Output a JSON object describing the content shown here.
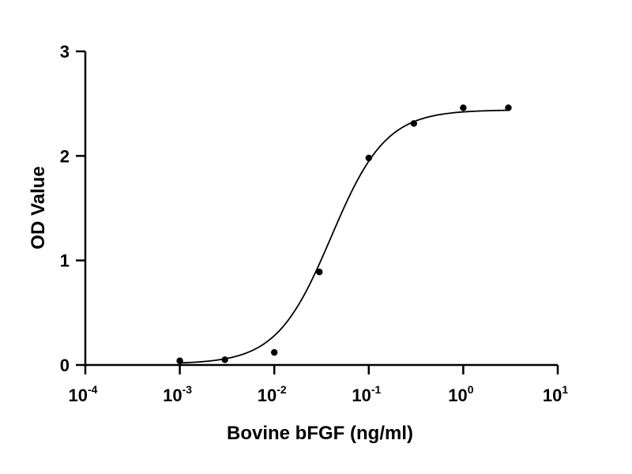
{
  "chart_data": {
    "type": "scatter",
    "title": "",
    "xlabel": "Bovine bFGF (ng/ml)",
    "ylabel": "OD Value",
    "x_scale": "log",
    "xlim": [
      0.0001,
      10
    ],
    "ylim": [
      0,
      3
    ],
    "x_ticks": [
      {
        "value": 0.0001,
        "base": "10",
        "exp": "-4"
      },
      {
        "value": 0.001,
        "base": "10",
        "exp": "-3"
      },
      {
        "value": 0.01,
        "base": "10",
        "exp": "-2"
      },
      {
        "value": 0.1,
        "base": "10",
        "exp": "-1"
      },
      {
        "value": 1,
        "base": "10",
        "exp": "0"
      },
      {
        "value": 10,
        "base": "10",
        "exp": "1"
      }
    ],
    "y_ticks": [
      {
        "value": 0,
        "label": "0"
      },
      {
        "value": 1,
        "label": "1"
      },
      {
        "value": 2,
        "label": "2"
      },
      {
        "value": 3,
        "label": "3"
      }
    ],
    "grid": false,
    "legend": "none",
    "color": "#000000",
    "series": [
      {
        "x": [
          0.001,
          0.003,
          0.01,
          0.03,
          0.1,
          0.3,
          1,
          3
        ],
        "y": [
          0.04,
          0.05,
          0.12,
          0.89,
          1.98,
          2.31,
          2.46,
          2.46
        ]
      }
    ],
    "fit_curve": {
      "model": "four-parameter logistic",
      "bottom": 0.01,
      "top": 2.44,
      "ec50": 0.04,
      "hill": 1.5
    }
  }
}
